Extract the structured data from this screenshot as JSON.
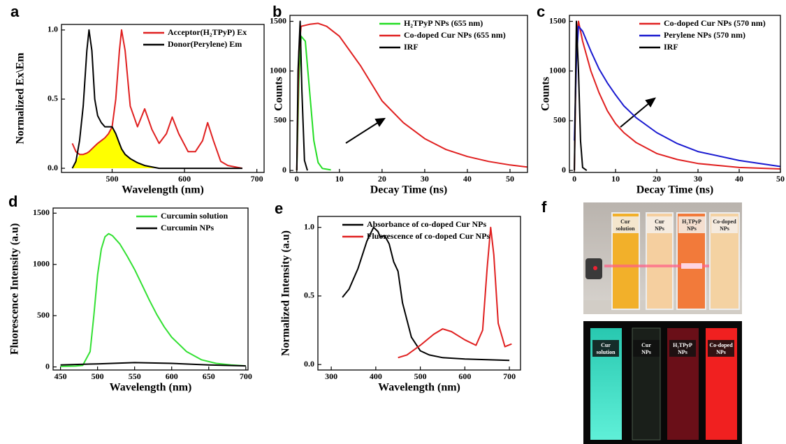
{
  "chart_data": [
    {
      "type": "line",
      "label": "a",
      "xlabel": "Wavelength (nm)",
      "ylabel": "Normalized Ex\\Em",
      "xlim": [
        430,
        710
      ],
      "ylim": [
        -0.03,
        1.04
      ],
      "xticks": [
        500,
        600,
        700
      ],
      "yticks": [
        {
          "value": 0,
          "label": "0.0"
        },
        {
          "value": 0.5,
          "label": "0.5"
        },
        {
          "value": 1,
          "label": "1.0"
        }
      ],
      "legend": "upper right",
      "fill_color": "#ffff00",
      "x": [
        445,
        450,
        455,
        460,
        465,
        468,
        472,
        476,
        480,
        485,
        490,
        495,
        500,
        505,
        510,
        513,
        518,
        525,
        535,
        545,
        555,
        565,
        575,
        583,
        592,
        605,
        615,
        625,
        632,
        640,
        650,
        660,
        680
      ],
      "series": [
        {
          "name": "Acceptor(H₂TPyP) Ex",
          "color": "#e02020",
          "values": [
            0.18,
            0.12,
            0.1,
            0.1,
            0.11,
            0.12,
            0.14,
            0.16,
            0.18,
            0.2,
            0.22,
            0.25,
            0.3,
            0.5,
            0.85,
            1.0,
            0.85,
            0.45,
            0.3,
            0.43,
            0.28,
            0.18,
            0.25,
            0.37,
            0.25,
            0.12,
            0.12,
            0.2,
            0.33,
            0.2,
            0.05,
            0.02,
            0
          ]
        },
        {
          "name": "Donor(Perylene) Em",
          "color": "#000000",
          "values": [
            0,
            0.05,
            0.2,
            0.45,
            0.85,
            1.0,
            0.85,
            0.5,
            0.38,
            0.33,
            0.3,
            0.3,
            0.3,
            0.25,
            0.18,
            0.14,
            0.1,
            0.07,
            0.04,
            0.02,
            0.01,
            0,
            0,
            0,
            0,
            0,
            0,
            0,
            0,
            0,
            0,
            0,
            0
          ]
        }
      ]
    },
    {
      "type": "line",
      "label": "b",
      "xlabel": "Decay Time (ns)",
      "ylabel": "Counts",
      "xlim": [
        -1.6,
        54.1
      ],
      "ylim": [
        -20,
        1560
      ],
      "xticks": [
        0,
        10,
        20,
        30,
        40,
        50
      ],
      "yticks": [
        0,
        500,
        1000,
        1500
      ],
      "legend": "upper right",
      "series": [
        {
          "name": "H₂TPyP NPs (655 nm)",
          "color": "#22dd22",
          "x": [
            0,
            0.5,
            1,
            2,
            3,
            4,
            5,
            6,
            8
          ],
          "values": [
            0,
            900,
            1350,
            1300,
            800,
            300,
            80,
            20,
            5
          ]
        },
        {
          "name": "Co-doped Cur NPs (655 nm)",
          "color": "#e02020",
          "x": [
            0,
            0.5,
            1,
            3,
            5,
            7,
            10,
            15,
            20,
            25,
            30,
            35,
            40,
            45,
            50,
            54
          ],
          "values": [
            0,
            1200,
            1450,
            1470,
            1480,
            1450,
            1350,
            1050,
            700,
            480,
            320,
            210,
            140,
            90,
            55,
            35
          ]
        },
        {
          "name": "IRF",
          "color": "#000000",
          "x": [
            0,
            0.3,
            0.8,
            1.2,
            1.8,
            2.5
          ],
          "values": [
            0,
            1000,
            1500,
            800,
            100,
            0
          ]
        }
      ]
    },
    {
      "type": "line",
      "label": "c",
      "xlabel": "Decay Time (ns)",
      "ylabel": "Counts",
      "xlim": [
        -1.2,
        50
      ],
      "ylim": [
        -20,
        1560
      ],
      "xticks": [
        0,
        10,
        20,
        30,
        40,
        50
      ],
      "yticks": [
        0,
        500,
        1000,
        1500
      ],
      "legend": "upper right",
      "series": [
        {
          "name": "Co-doped Cur NPs (570 nm)",
          "color": "#e02020",
          "x": [
            0,
            0.5,
            1,
            2,
            4,
            6,
            8,
            10,
            12,
            15,
            20,
            25,
            30,
            40,
            50
          ],
          "values": [
            0,
            1300,
            1500,
            1300,
            1000,
            780,
            600,
            470,
            380,
            280,
            170,
            110,
            70,
            30,
            15
          ]
        },
        {
          "name": "Perylene NPs (570 nm)",
          "color": "#1a1ad0",
          "x": [
            0,
            0.5,
            1,
            2,
            4,
            6,
            8,
            10,
            12,
            15,
            20,
            25,
            30,
            40,
            50
          ],
          "values": [
            300,
            1100,
            1450,
            1400,
            1200,
            1020,
            880,
            760,
            650,
            530,
            380,
            270,
            190,
            100,
            40
          ]
        },
        {
          "name": "IRF",
          "color": "#000000",
          "x": [
            0,
            0.5,
            1,
            1.5,
            2,
            3
          ],
          "values": [
            0,
            1500,
            1000,
            300,
            30,
            0
          ]
        }
      ]
    },
    {
      "type": "line",
      "label": "d",
      "xlabel": "Wavelength (nm)",
      "ylabel": "Fluorescence Intensity (a.u)",
      "xlim": [
        440,
        703
      ],
      "ylim": [
        -30,
        1550
      ],
      "xticks": [
        450,
        500,
        550,
        600,
        650,
        700
      ],
      "yticks": [
        0,
        500,
        1000,
        1500
      ],
      "legend": "upper right",
      "series": [
        {
          "name": "Curcumin solution",
          "color": "#33e033",
          "x": [
            450,
            470,
            480,
            490,
            495,
            500,
            505,
            510,
            515,
            520,
            530,
            540,
            550,
            560,
            570,
            580,
            590,
            600,
            620,
            640,
            660,
            680,
            700
          ],
          "values": [
            5,
            8,
            15,
            150,
            500,
            900,
            1150,
            1270,
            1300,
            1280,
            1200,
            1080,
            950,
            800,
            650,
            510,
            390,
            290,
            150,
            70,
            35,
            20,
            10
          ]
        },
        {
          "name": "Curcumin NPs",
          "color": "#000000",
          "x": [
            450,
            500,
            550,
            600,
            650,
            700
          ],
          "values": [
            20,
            30,
            42,
            35,
            20,
            10
          ]
        }
      ]
    },
    {
      "type": "line",
      "label": "e",
      "xlabel": "Wavelength (nm)",
      "ylabel": "Normalized Intensity (a.u)",
      "xlim": [
        270,
        725
      ],
      "ylim": [
        -0.04,
        1.08
      ],
      "xticks": [
        300,
        400,
        500,
        600,
        700
      ],
      "yticks": [
        {
          "value": 0,
          "label": "0.0"
        },
        {
          "value": 0.5,
          "label": "0.5"
        },
        {
          "value": 1,
          "label": "1.0"
        }
      ],
      "legend": "upper left",
      "series": [
        {
          "name": "Absorbance of co-doped Cur NPs",
          "color": "#000000",
          "x": [
            325,
            340,
            360,
            380,
            395,
            405,
            410,
            420,
            430,
            440,
            450,
            460,
            480,
            500,
            520,
            550,
            600,
            650,
            700
          ],
          "values": [
            0.49,
            0.55,
            0.7,
            0.9,
            1.0,
            0.97,
            0.93,
            0.94,
            0.88,
            0.75,
            0.68,
            0.45,
            0.2,
            0.1,
            0.07,
            0.05,
            0.04,
            0.035,
            0.03
          ]
        },
        {
          "name": "Fluorescence of co-doped Cur NPs",
          "color": "#e02020",
          "x": [
            450,
            470,
            500,
            530,
            550,
            570,
            600,
            625,
            640,
            650,
            658,
            665,
            675,
            690,
            705
          ],
          "values": [
            0.05,
            0.07,
            0.14,
            0.22,
            0.26,
            0.24,
            0.18,
            0.14,
            0.25,
            0.7,
            1.0,
            0.8,
            0.3,
            0.13,
            0.15
          ]
        }
      ]
    }
  ],
  "photo_panel": {
    "label": "f",
    "top_cuvettes": [
      [
        "Cur",
        "solution"
      ],
      [
        "Cur",
        "NPs"
      ],
      [
        "H₂TPyP",
        "NPs"
      ],
      [
        "Co-doped",
        "NPs"
      ]
    ],
    "bottom_cuvettes": [
      [
        "Cur",
        "solution"
      ],
      [
        "Cur",
        "NPs"
      ],
      [
        "H₂TPyP",
        "NPs"
      ],
      [
        "Co-doped",
        "NPs"
      ]
    ]
  }
}
